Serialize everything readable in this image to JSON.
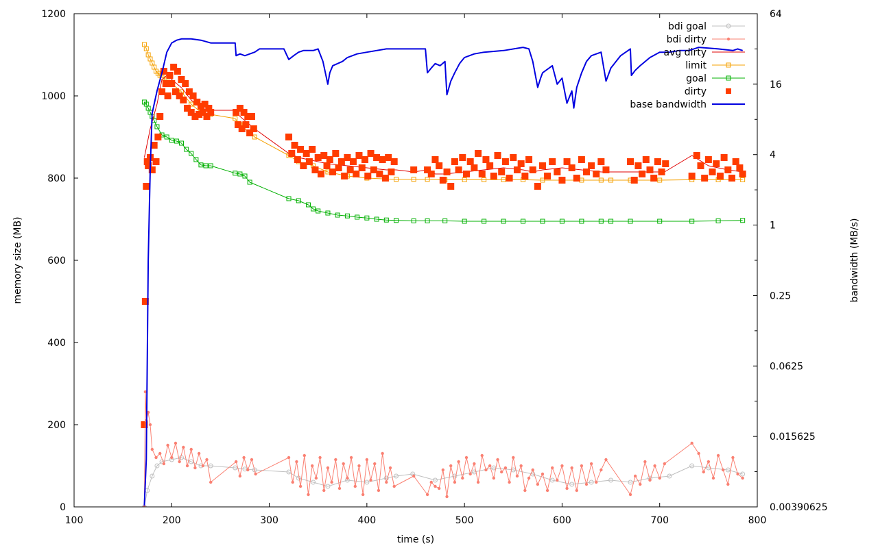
{
  "chart_data": {
    "type": "line",
    "xlabel": "time (s)",
    "ylabel": "memory size (MB)",
    "y2label": "bandwidth (MB/s)",
    "xlim": [
      100,
      800
    ],
    "ylim": [
      0,
      1200
    ],
    "y2lim": [
      0.00390625,
      64
    ],
    "y2scale": "log2",
    "xticks": [
      "100",
      "200",
      "300",
      "400",
      "500",
      "600",
      "700",
      "800"
    ],
    "yticks": [
      "0",
      "200",
      "400",
      "600",
      "800",
      "1000",
      "1200"
    ],
    "y2ticks": [
      "0.00390625",
      "0.015625",
      "0.0625",
      "0.25",
      "1",
      "4",
      "16",
      "64"
    ],
    "legend_position": "top-right",
    "series": [
      {
        "name": "bdi goal",
        "color": "#c0c0c0",
        "style": "line-circle",
        "axis": "y",
        "x": [
          172,
          175,
          180,
          185,
          190,
          200,
          210,
          220,
          230,
          240,
          265,
          275,
          285,
          320,
          330,
          345,
          360,
          380,
          400,
          420,
          430,
          447,
          470,
          490,
          510,
          530,
          550,
          570,
          590,
          610,
          630,
          650,
          670,
          690,
          710,
          733,
          750,
          770,
          785
        ],
        "y": [
          0,
          40,
          75,
          100,
          110,
          115,
          120,
          110,
          100,
          100,
          95,
          92,
          90,
          85,
          70,
          60,
          50,
          65,
          60,
          70,
          75,
          80,
          65,
          75,
          85,
          95,
          90,
          80,
          65,
          55,
          60,
          65,
          60,
          70,
          75,
          100,
          95,
          90,
          80
        ]
      },
      {
        "name": "bdi dirty",
        "color": "#fa8072",
        "style": "line-dot",
        "axis": "y",
        "x": [
          172,
          173,
          174,
          176,
          178,
          180,
          184,
          188,
          192,
          196,
          200,
          204,
          208,
          212,
          216,
          220,
          224,
          228,
          232,
          236,
          240,
          266,
          270,
          274,
          278,
          282,
          286,
          320,
          324,
          328,
          332,
          336,
          340,
          344,
          348,
          352,
          356,
          360,
          364,
          368,
          372,
          376,
          380,
          384,
          388,
          392,
          396,
          400,
          404,
          408,
          412,
          416,
          420,
          424,
          428,
          448,
          462,
          466,
          470,
          474,
          478,
          482,
          486,
          490,
          494,
          498,
          502,
          506,
          510,
          514,
          518,
          522,
          526,
          530,
          534,
          538,
          542,
          546,
          550,
          554,
          558,
          562,
          566,
          570,
          575,
          580,
          585,
          590,
          595,
          600,
          605,
          610,
          615,
          620,
          625,
          630,
          635,
          640,
          645,
          670,
          675,
          680,
          685,
          690,
          695,
          700,
          705,
          733,
          740,
          745,
          750,
          755,
          760,
          765,
          770,
          775,
          780,
          785
        ],
        "y": [
          0,
          280,
          210,
          230,
          200,
          140,
          120,
          130,
          105,
          150,
          120,
          155,
          110,
          145,
          100,
          140,
          95,
          130,
          100,
          115,
          60,
          110,
          75,
          120,
          90,
          115,
          80,
          120,
          60,
          110,
          50,
          125,
          30,
          100,
          70,
          120,
          40,
          95,
          60,
          115,
          45,
          105,
          70,
          120,
          50,
          100,
          30,
          115,
          65,
          105,
          40,
          130,
          60,
          95,
          50,
          75,
          30,
          60,
          50,
          45,
          90,
          25,
          100,
          60,
          110,
          70,
          120,
          80,
          105,
          60,
          125,
          90,
          100,
          70,
          115,
          85,
          95,
          60,
          120,
          75,
          100,
          40,
          70,
          90,
          55,
          80,
          40,
          95,
          65,
          100,
          45,
          95,
          40,
          100,
          55,
          105,
          60,
          90,
          115,
          30,
          75,
          55,
          110,
          65,
          100,
          70,
          105,
          155,
          130,
          85,
          110,
          70,
          125,
          90,
          55,
          120,
          80,
          70
        ]
      },
      {
        "name": "avg dirty",
        "color": "#e00000",
        "style": "line",
        "axis": "y",
        "x": [
          172,
          178,
          185,
          190,
          195,
          200,
          210,
          220,
          230,
          240,
          265,
          270,
          280,
          285,
          320,
          330,
          340,
          350,
          360,
          380,
          400,
          420,
          430,
          448,
          462,
          470,
          480,
          500,
          520,
          540,
          560,
          570,
          580,
          600,
          620,
          640,
          650,
          670,
          690,
          705,
          733,
          750,
          770,
          785
        ],
        "y": [
          850,
          920,
          980,
          1040,
          1050,
          1040,
          1020,
          990,
          970,
          965,
          965,
          950,
          930,
          920,
          860,
          850,
          845,
          840,
          835,
          830,
          825,
          820,
          820,
          815,
          820,
          810,
          810,
          815,
          820,
          825,
          820,
          815,
          820,
          825,
          820,
          815,
          815,
          815,
          815,
          815,
          855,
          830,
          820,
          815
        ]
      },
      {
        "name": "limit",
        "color": "#f5a000",
        "style": "line-square",
        "axis": "y",
        "x": [
          172,
          174,
          176,
          178,
          180,
          182,
          184,
          186,
          188,
          190,
          195,
          200,
          210,
          220,
          230,
          240,
          265,
          270,
          280,
          285,
          320,
          330,
          345,
          360,
          380,
          400,
          420,
          430,
          448,
          462,
          480,
          500,
          520,
          540,
          560,
          580,
          600,
          620,
          640,
          650,
          670,
          700,
          733,
          760,
          785
        ],
        "y": [
          1125,
          1115,
          1100,
          1090,
          1080,
          1070,
          1060,
          1055,
          1050,
          1045,
          1040,
          1030,
          1010,
          980,
          960,
          955,
          945,
          930,
          910,
          900,
          855,
          840,
          830,
          815,
          805,
          800,
          798,
          797,
          797,
          797,
          796,
          796,
          796,
          796,
          796,
          795,
          795,
          795,
          795,
          795,
          795,
          795,
          796,
          796,
          796
        ]
      },
      {
        "name": "goal",
        "color": "#00b000",
        "style": "line-square",
        "axis": "y",
        "x": [
          172,
          174,
          176,
          178,
          180,
          182,
          185,
          190,
          195,
          200,
          205,
          210,
          215,
          220,
          225,
          230,
          235,
          240,
          265,
          270,
          275,
          280,
          320,
          330,
          340,
          345,
          350,
          360,
          370,
          380,
          390,
          400,
          410,
          420,
          430,
          448,
          462,
          480,
          500,
          520,
          540,
          560,
          580,
          600,
          620,
          640,
          650,
          670,
          700,
          733,
          760,
          785
        ],
        "y": [
          985,
          980,
          970,
          960,
          950,
          940,
          925,
          905,
          900,
          892,
          890,
          885,
          870,
          860,
          845,
          832,
          830,
          830,
          812,
          810,
          805,
          790,
          750,
          745,
          735,
          725,
          720,
          715,
          710,
          708,
          705,
          703,
          700,
          698,
          697,
          696,
          696,
          696,
          695,
          695,
          695,
          695,
          695,
          695,
          695,
          695,
          695,
          695,
          695,
          695,
          696,
          697
        ]
      },
      {
        "name": "dirty",
        "color": "#ff3c00",
        "style": "points-square",
        "axis": "y",
        "x": [
          172,
          173,
          174,
          175,
          176,
          178,
          180,
          182,
          184,
          186,
          188,
          190,
          192,
          194,
          196,
          198,
          200,
          202,
          204,
          206,
          208,
          210,
          212,
          214,
          216,
          218,
          220,
          222,
          224,
          226,
          228,
          230,
          232,
          234,
          236,
          238,
          240,
          266,
          268,
          270,
          272,
          274,
          276,
          278,
          280,
          282,
          284,
          320,
          323,
          326,
          329,
          332,
          335,
          338,
          341,
          344,
          347,
          350,
          353,
          356,
          359,
          362,
          365,
          368,
          371,
          374,
          377,
          380,
          383,
          386,
          389,
          392,
          395,
          398,
          401,
          404,
          407,
          410,
          413,
          416,
          419,
          422,
          425,
          428,
          448,
          462,
          466,
          470,
          474,
          478,
          482,
          486,
          490,
          494,
          498,
          502,
          506,
          510,
          514,
          518,
          522,
          526,
          530,
          534,
          538,
          542,
          546,
          550,
          554,
          558,
          562,
          566,
          570,
          575,
          580,
          585,
          590,
          595,
          600,
          605,
          610,
          615,
          620,
          625,
          630,
          635,
          640,
          645,
          670,
          674,
          678,
          682,
          686,
          690,
          694,
          698,
          702,
          706,
          733,
          738,
          742,
          746,
          750,
          754,
          758,
          762,
          766,
          770,
          774,
          778,
          782,
          785
        ],
        "y": [
          200,
          500,
          780,
          840,
          830,
          850,
          820,
          880,
          840,
          900,
          950,
          1010,
          1060,
          1030,
          1000,
          1050,
          1030,
          1070,
          1010,
          1060,
          1000,
          1040,
          990,
          1030,
          970,
          1010,
          960,
          1000,
          950,
          985,
          955,
          975,
          960,
          980,
          950,
          970,
          960,
          960,
          930,
          970,
          920,
          960,
          930,
          950,
          910,
          950,
          920,
          900,
          860,
          880,
          845,
          870,
          830,
          860,
          840,
          870,
          820,
          850,
          810,
          855,
          830,
          845,
          815,
          860,
          825,
          840,
          805,
          850,
          820,
          840,
          810,
          855,
          825,
          845,
          805,
          860,
          820,
          850,
          810,
          845,
          800,
          850,
          815,
          840,
          820,
          820,
          810,
          845,
          830,
          795,
          815,
          780,
          840,
          820,
          850,
          810,
          840,
          825,
          860,
          810,
          845,
          830,
          805,
          855,
          815,
          840,
          800,
          850,
          820,
          835,
          805,
          845,
          820,
          780,
          830,
          805,
          840,
          815,
          795,
          840,
          825,
          800,
          845,
          815,
          830,
          810,
          840,
          820,
          840,
          795,
          830,
          810,
          845,
          820,
          800,
          840,
          815,
          835,
          805,
          855,
          830,
          800,
          845,
          815,
          835,
          805,
          850,
          820,
          800,
          840,
          825,
          810
        ],
        "mark_size": 5
      },
      {
        "name": "base bandwidth",
        "color": "#0000e0",
        "style": "line",
        "axis": "y2",
        "x": [
          172,
          174,
          176,
          178,
          180,
          185,
          190,
          195,
          200,
          205,
          210,
          220,
          230,
          240,
          250,
          260,
          265,
          266,
          270,
          275,
          280,
          285,
          290,
          300,
          315,
          320,
          325,
          330,
          335,
          340,
          345,
          350,
          355,
          360,
          362,
          365,
          370,
          375,
          380,
          390,
          400,
          420,
          440,
          460,
          462,
          466,
          470,
          475,
          480,
          482,
          486,
          490,
          495,
          500,
          505,
          510,
          520,
          540,
          560,
          566,
          570,
          575,
          578,
          580,
          590,
          595,
          600,
          605,
          610,
          612,
          615,
          620,
          625,
          630,
          640,
          645,
          650,
          660,
          670,
          671,
          675,
          680,
          690,
          700,
          710,
          720,
          730,
          740,
          760,
          775,
          780,
          785
        ],
        "y": [
          0.004,
          0.01,
          0.5,
          3,
          9,
          14,
          20,
          30,
          36,
          38,
          39,
          39,
          38,
          36,
          36,
          36,
          36,
          28,
          29,
          28,
          29,
          30,
          32,
          32,
          32,
          26,
          28,
          30,
          31,
          31,
          31,
          32,
          25,
          16,
          20,
          23,
          24,
          25,
          27,
          29,
          30,
          32,
          32,
          32,
          20,
          22,
          24,
          23,
          25,
          13,
          17,
          20,
          24,
          27,
          28,
          29,
          30,
          31,
          33,
          32,
          25,
          15,
          18,
          20,
          23,
          16,
          18,
          11,
          14,
          10,
          15,
          20,
          25,
          28,
          30,
          17,
          22,
          28,
          32,
          19,
          21,
          23,
          27,
          30,
          30,
          31,
          31,
          33,
          32,
          31,
          32,
          31
        ]
      }
    ]
  }
}
